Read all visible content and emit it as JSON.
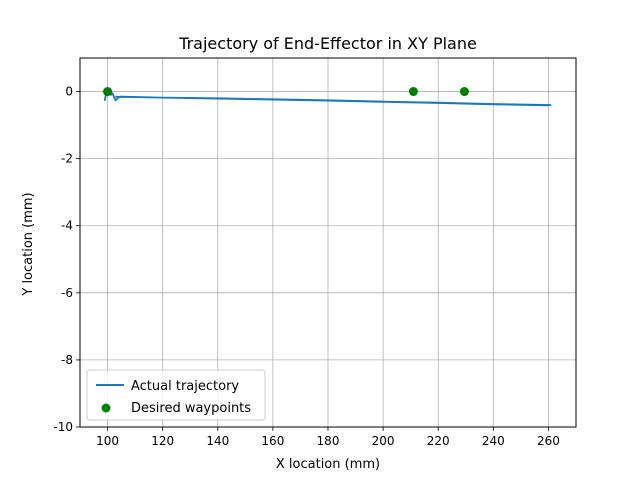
{
  "chart_data": {
    "type": "line",
    "title": "Trajectory of End-Effector in XY Plane",
    "xlabel": "X location (mm)",
    "ylabel": "Y location (mm)",
    "xlim": [
      90,
      270
    ],
    "ylim": [
      -10,
      1
    ],
    "xticks": [
      100,
      120,
      140,
      160,
      180,
      200,
      220,
      240,
      260
    ],
    "yticks": [
      -10,
      -8,
      -6,
      -4,
      -2,
      0
    ],
    "grid": true,
    "legend_position": "lower-left",
    "series": [
      {
        "name": "Actual trajectory",
        "type": "line",
        "color": "#1f77b4",
        "x": [
          99.0,
          99.3,
          99.6,
          100.1,
          100.6,
          101.2,
          101.8,
          102.4,
          103.0,
          103.7,
          104.5,
          120.0,
          140.0,
          160.0,
          180.0,
          200.0,
          220.0,
          240.0,
          260.8,
          260.2,
          240.0,
          220.0,
          200.0,
          180.0,
          160.0,
          140.0,
          120.0,
          104.0,
          102.8
        ],
        "y": [
          -0.28,
          -0.12,
          -0.03,
          -0.06,
          -0.02,
          -0.1,
          -0.05,
          -0.18,
          -0.26,
          -0.2,
          -0.15,
          -0.18,
          -0.2,
          -0.23,
          -0.26,
          -0.3,
          -0.33,
          -0.37,
          -0.4,
          -0.41,
          -0.38,
          -0.34,
          -0.31,
          -0.27,
          -0.24,
          -0.21,
          -0.18,
          -0.16,
          -0.15
        ]
      },
      {
        "name": "Desired waypoints",
        "type": "scatter",
        "color": "#008000",
        "x": [
          100,
          211,
          229.5
        ],
        "y": [
          0,
          0,
          0
        ]
      }
    ]
  }
}
